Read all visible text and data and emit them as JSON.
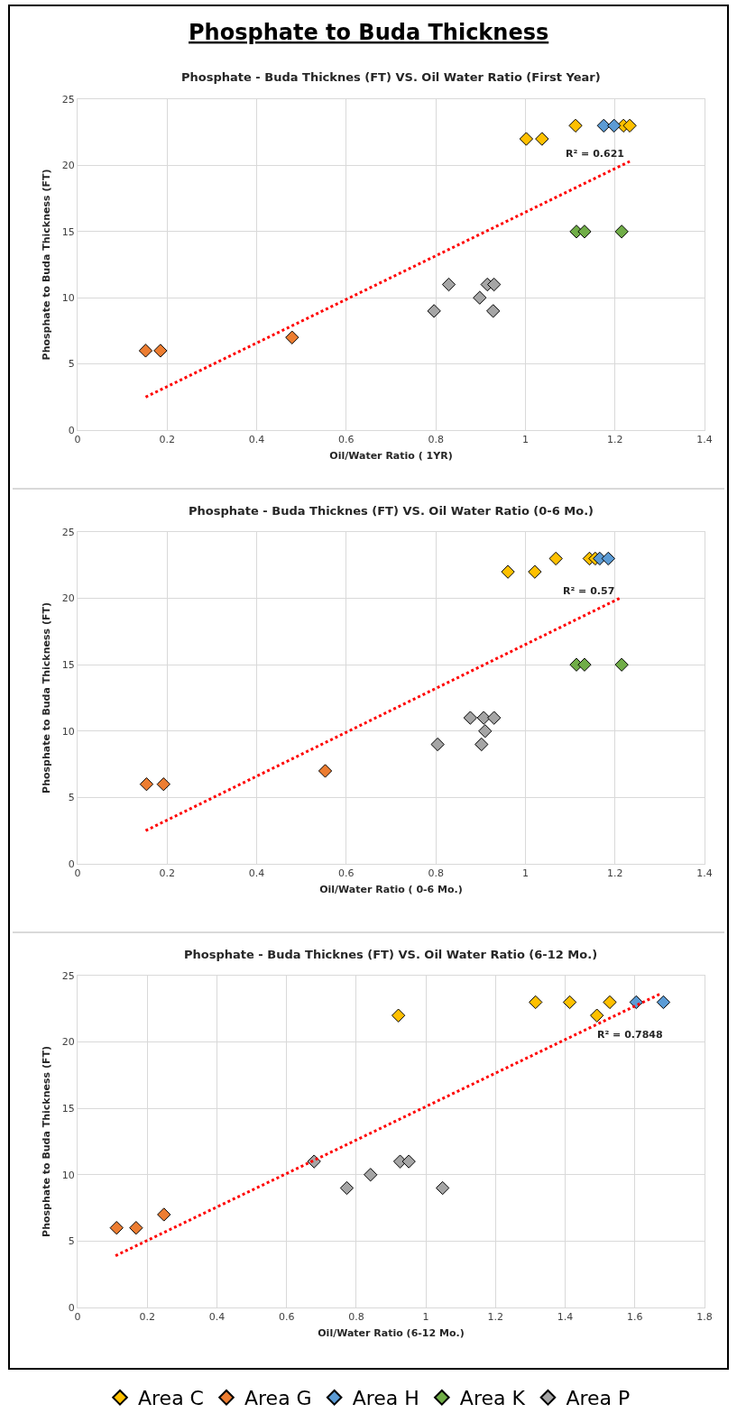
{
  "chart_data": [
    {
      "type": "scatter",
      "title": "Phosphate to Buda Thickness",
      "subtitle": "Phosphate - Buda Thicknes (FT) VS. Oil Water Ratio (First Year)",
      "xlabel": "Oil/Water Ratio ( 1YR)",
      "ylabel": "Phosphate to Buda Thickness (FT)",
      "xlim": [
        0,
        1.4
      ],
      "xticks": [
        0,
        0.2,
        0.4,
        0.6,
        0.8,
        1,
        1.2,
        1.4
      ],
      "ylim": [
        0,
        25
      ],
      "yticks": [
        0,
        5,
        10,
        15,
        20,
        25
      ],
      "grid": true,
      "marker": "diamond",
      "legend": "bottom",
      "series": [
        {
          "name": "Area C",
          "color": "#ffc000",
          "x": [
            1.002,
            1.037,
            1.112,
            1.219,
            1.233
          ],
          "values": [
            22,
            22,
            23,
            23,
            23
          ]
        },
        {
          "name": "Area G",
          "color": "#ed7d31",
          "x": [
            0.152,
            0.185,
            0.479
          ],
          "values": [
            6,
            6,
            7
          ]
        },
        {
          "name": "Area H",
          "color": "#5b9bd5",
          "x": [
            1.175,
            1.198
          ],
          "values": [
            23,
            23
          ]
        },
        {
          "name": "Area K",
          "color": "#70ad47",
          "x": [
            1.114,
            1.132,
            1.215
          ],
          "values": [
            15,
            15,
            15
          ]
        },
        {
          "name": "Area P",
          "color": "#a5a5a5",
          "x": [
            0.829,
            0.915,
            0.93,
            0.898,
            0.796,
            0.928
          ],
          "values": [
            11,
            11,
            11,
            10,
            9,
            9
          ]
        },
        {
          "type": "line",
          "color": "#ff0000",
          "line_style": "dotted",
          "marker": "none",
          "x": [
            0.152,
            1.233
          ],
          "values": [
            2.5,
            20.3
          ]
        }
      ],
      "annotations": [
        "R² = 0.621"
      ]
    },
    {
      "type": "scatter",
      "title": "Phosphate - Buda Thicknes (FT) VS. Oil Water Ratio (0-6 Mo.)",
      "xlabel": "Oil/Water Ratio ( 0-6 Mo.)",
      "ylabel": "Phosphate to Buda Thickness (FT)",
      "xlim": [
        0,
        1.4
      ],
      "xticks": [
        0,
        0.2,
        0.4,
        0.6,
        0.8,
        1,
        1.2,
        1.4
      ],
      "ylim": [
        0,
        25
      ],
      "yticks": [
        0,
        5,
        10,
        15,
        20,
        25
      ],
      "grid": true,
      "marker": "diamond",
      "series": [
        {
          "color": "#ffc000",
          "x": [
            0.961,
            1.021,
            1.068,
            1.143,
            1.156
          ],
          "values": [
            22,
            22,
            23,
            23,
            23
          ]
        },
        {
          "color": "#ed7d31",
          "x": [
            0.154,
            0.192,
            0.553
          ],
          "values": [
            6,
            6,
            7
          ]
        },
        {
          "color": "#5b9bd5",
          "x": [
            1.166,
            1.185
          ],
          "values": [
            23,
            23
          ]
        },
        {
          "color": "#70ad47",
          "x": [
            1.114,
            1.132,
            1.215
          ],
          "values": [
            15,
            15,
            15
          ]
        },
        {
          "color": "#a5a5a5",
          "x": [
            0.877,
            0.907,
            0.93,
            0.91,
            0.804,
            0.902
          ],
          "values": [
            11,
            11,
            11,
            10,
            9,
            9
          ]
        },
        {
          "type": "line",
          "color": "#ff0000",
          "line_style": "dotted",
          "marker": "none",
          "x": [
            0.152,
            1.21
          ],
          "values": [
            2.5,
            20
          ]
        }
      ],
      "annotations": [
        "R² = 0.57"
      ]
    },
    {
      "type": "scatter",
      "title": "Phosphate - Buda Thicknes (FT) VS. Oil Water Ratio (6-12 Mo.)",
      "xlabel": "Oil/Water Ratio (6-12 Mo.)",
      "ylabel": "Phosphate to Buda Thickness (FT)",
      "xlim": [
        0,
        1.8
      ],
      "xticks": [
        0,
        0.2,
        0.4,
        0.6,
        0.8,
        1,
        1.2,
        1.4,
        1.6,
        1.8
      ],
      "ylim": [
        0,
        25
      ],
      "yticks": [
        0,
        5,
        10,
        15,
        20,
        25
      ],
      "grid": true,
      "marker": "diamond",
      "series": [
        {
          "color": "#ffc000",
          "x": [
            0.921,
            1.315,
            1.413,
            1.491,
            1.528
          ],
          "values": [
            22,
            23,
            23,
            22,
            23
          ]
        },
        {
          "color": "#ed7d31",
          "x": [
            0.112,
            0.168,
            0.248
          ],
          "values": [
            6,
            6,
            7
          ]
        },
        {
          "color": "#5b9bd5",
          "x": [
            1.604,
            1.682
          ],
          "values": [
            23,
            23
          ]
        },
        {
          "color": "#a5a5a5",
          "x": [
            0.679,
            0.773,
            0.841,
            0.926,
            0.951,
            1.048
          ],
          "values": [
            11,
            9,
            10,
            11,
            11,
            9
          ]
        },
        {
          "type": "line",
          "color": "#ff0000",
          "line_style": "dotted",
          "marker": "none",
          "x": [
            0.109,
            1.671
          ],
          "values": [
            3.9,
            23.6
          ]
        }
      ],
      "annotations": [
        "R² = 0.7848"
      ]
    }
  ]
}
